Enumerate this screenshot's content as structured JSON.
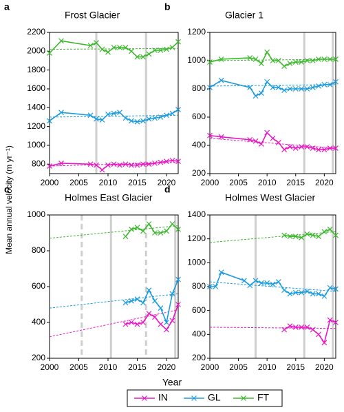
{
  "ylabel": "Mean annual velocity (m yr⁻¹)",
  "xlabel": "Year",
  "chart_data": [
    {
      "type": "line",
      "label": "a",
      "title": "Frost Glacier",
      "xlim": [
        2000,
        2022
      ],
      "xticks": [
        2000,
        2005,
        2010,
        2015,
        2020
      ],
      "ylim": [
        700,
        2200
      ],
      "yticks": [
        800,
        1000,
        1200,
        1400,
        1600,
        1800,
        2000,
        2200
      ],
      "vlines": [
        {
          "x": 2008,
          "dashed": false
        },
        {
          "x": 2016.5,
          "dashed": false
        }
      ],
      "x": [
        2000,
        2002,
        2007,
        2008,
        2009,
        2010,
        2011,
        2012,
        2013,
        2014,
        2015,
        2016,
        2017,
        2018,
        2019,
        2020,
        2021,
        2022
      ],
      "series": [
        {
          "name": "IN",
          "color": "#e619c5",
          "values": [
            780,
            810,
            800,
            790,
            740,
            790,
            800,
            790,
            800,
            790,
            790,
            800,
            800,
            810,
            820,
            830,
            840,
            830
          ],
          "trend_x": [
            2000,
            2022
          ],
          "trend": [
            780,
            820
          ]
        },
        {
          "name": "GL",
          "color": "#1b9be0",
          "values": [
            1260,
            1350,
            1320,
            1280,
            1270,
            1330,
            1340,
            1350,
            1290,
            1260,
            1250,
            1260,
            1280,
            1290,
            1300,
            1320,
            1340,
            1380
          ],
          "trend_x": [
            2000,
            2022
          ],
          "trend": [
            1300,
            1320
          ]
        },
        {
          "name": "FT",
          "color": "#3cb82c",
          "values": [
            1980,
            2110,
            2060,
            2090,
            2020,
            1990,
            2040,
            2040,
            2040,
            2000,
            1940,
            1940,
            1970,
            2010,
            2010,
            2020,
            2040,
            2100
          ],
          "trend_x": [
            2000,
            2022
          ],
          "trend": [
            2020,
            2030
          ]
        }
      ]
    },
    {
      "type": "line",
      "label": "b",
      "title": "Glacier 1",
      "xlim": [
        2000,
        2022
      ],
      "xticks": [
        2000,
        2005,
        2010,
        2015,
        2020
      ],
      "ylim": [
        200,
        1200
      ],
      "yticks": [
        200,
        400,
        600,
        800,
        1000,
        1200
      ],
      "vlines": [
        {
          "x": 2016.5,
          "dashed": false
        },
        {
          "x": 2021.5,
          "dashed": false
        }
      ],
      "x": [
        2000,
        2002,
        2007,
        2008,
        2009,
        2010,
        2011,
        2012,
        2013,
        2014,
        2015,
        2016,
        2017,
        2018,
        2019,
        2020,
        2021,
        2022
      ],
      "series": [
        {
          "name": "IN",
          "color": "#e619c5",
          "values": [
            470,
            460,
            440,
            430,
            410,
            490,
            450,
            420,
            370,
            390,
            380,
            390,
            390,
            380,
            370,
            370,
            380,
            380
          ],
          "trend_x": [
            2000,
            2022
          ],
          "trend": [
            450,
            380
          ]
        },
        {
          "name": "GL",
          "color": "#1b9be0",
          "values": [
            810,
            860,
            810,
            750,
            770,
            850,
            810,
            810,
            790,
            800,
            800,
            800,
            800,
            810,
            820,
            830,
            830,
            850
          ],
          "trend_x": [
            2000,
            2022
          ],
          "trend": [
            820,
            830
          ]
        },
        {
          "name": "FT",
          "color": "#3cb82c",
          "values": [
            990,
            1010,
            1020,
            1010,
            980,
            1060,
            1000,
            1000,
            960,
            980,
            990,
            990,
            1000,
            1000,
            1010,
            1010,
            1010,
            1010
          ],
          "trend_x": [
            2000,
            2022
          ],
          "trend": [
            1000,
            1010
          ]
        }
      ]
    },
    {
      "type": "line",
      "label": "c",
      "title": "Holmes East Glacier",
      "xlim": [
        2000,
        2022
      ],
      "xticks": [
        2000,
        2005,
        2010,
        2015,
        2020
      ],
      "ylim": [
        200,
        1000
      ],
      "yticks": [
        200,
        400,
        600,
        800,
        1000
      ],
      "vlines": [
        {
          "x": 2005.5,
          "dashed": true
        },
        {
          "x": 2010.5,
          "dashed": false
        },
        {
          "x": 2016.5,
          "dashed": true
        },
        {
          "x": 2021.5,
          "dashed": false
        }
      ],
      "x": [
        2013,
        2014,
        2015,
        2016,
        2017,
        2018,
        2019,
        2020,
        2021,
        2022
      ],
      "series": [
        {
          "name": "IN",
          "color": "#e619c5",
          "values": [
            390,
            400,
            390,
            400,
            450,
            430,
            390,
            360,
            410,
            500
          ],
          "trend_x": [
            2000,
            2022
          ],
          "trend": [
            320,
            470
          ]
        },
        {
          "name": "GL",
          "color": "#1b9be0",
          "values": [
            510,
            520,
            530,
            510,
            580,
            520,
            480,
            400,
            560,
            640
          ],
          "trend_x": [
            2000,
            2022
          ],
          "trend": [
            480,
            560
          ]
        },
        {
          "name": "FT",
          "color": "#3cb82c",
          "values": [
            880,
            920,
            930,
            910,
            950,
            900,
            900,
            910,
            950,
            920
          ],
          "trend_x": [
            2000,
            2022
          ],
          "trend": [
            870,
            940
          ]
        }
      ]
    },
    {
      "type": "line",
      "label": "d",
      "title": "Holmes West Glacier",
      "xlim": [
        2000,
        2022
      ],
      "xticks": [
        2000,
        2005,
        2010,
        2015,
        2020
      ],
      "ylim": [
        200,
        1400
      ],
      "yticks": [
        200,
        400,
        600,
        800,
        1000,
        1200,
        1400
      ],
      "vlines": [
        {
          "x": 2008,
          "dashed": false
        },
        {
          "x": 2016.5,
          "dashed": false
        },
        {
          "x": 2021.5,
          "dashed": false
        }
      ],
      "x": [
        2013,
        2014,
        2015,
        2016,
        2017,
        2018,
        2019,
        2020,
        2021,
        2022
      ],
      "series": [
        {
          "name": "IN",
          "color": "#e619c5",
          "values": [
            440,
            470,
            460,
            460,
            460,
            440,
            400,
            330,
            520,
            500
          ],
          "trend_x": [
            2000,
            2022
          ],
          "trend": [
            460,
            450
          ]
        },
        {
          "name": "GL",
          "color": "#1b9be0",
          "x": [
            2000,
            2001,
            2002,
            2006,
            2007,
            2008,
            2009,
            2010,
            2011,
            2012,
            2013,
            2014,
            2015,
            2016,
            2017,
            2018,
            2019,
            2020,
            2021,
            2022
          ],
          "values": [
            800,
            800,
            920,
            850,
            810,
            850,
            830,
            830,
            820,
            840,
            770,
            740,
            750,
            750,
            760,
            740,
            740,
            720,
            790,
            780
          ],
          "trend_x": [
            2000,
            2022
          ],
          "trend": [
            840,
            760
          ]
        },
        {
          "name": "FT",
          "color": "#3cb82c",
          "values": [
            1230,
            1220,
            1220,
            1210,
            1240,
            1230,
            1220,
            1260,
            1280,
            1230
          ],
          "trend_x": [
            2000,
            2022
          ],
          "trend": [
            1170,
            1260
          ]
        }
      ]
    }
  ]
}
